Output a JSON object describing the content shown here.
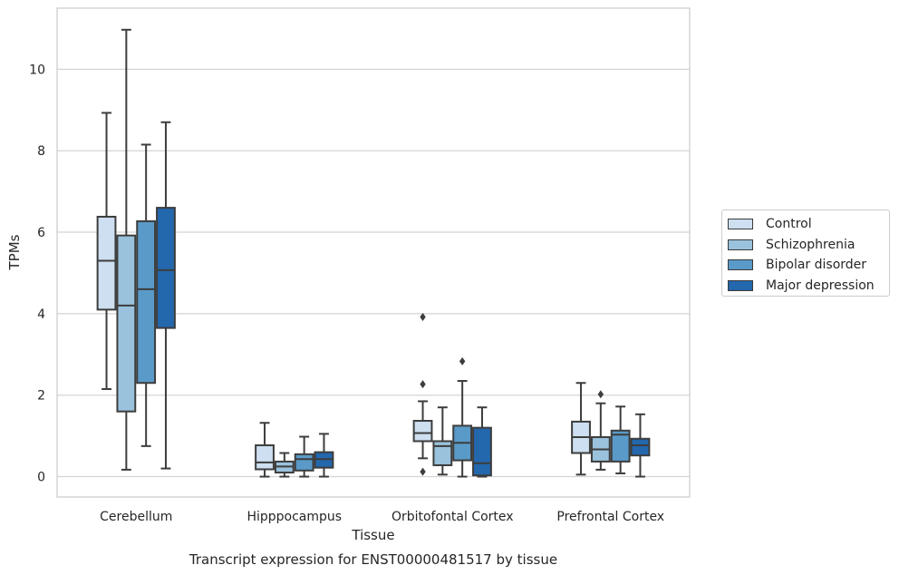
{
  "chart_data": {
    "type": "box",
    "title": "Transcript expression for ENST00000481517 by tissue",
    "xlabel": "Tissue",
    "ylabel": "TPMs",
    "ylim": [
      -0.5,
      11.5
    ],
    "yticks": [
      0,
      2,
      4,
      6,
      8,
      10
    ],
    "grid": "horizontal",
    "legend_position": "right",
    "categories": [
      "Cerebellum",
      "Hipppocampus",
      "Orbitofontal Cortex",
      "Prefrontal Cortex"
    ],
    "series": [
      {
        "name": "Control",
        "color": "#cddff0",
        "boxes": [
          {
            "whislo": 2.15,
            "q1": 4.1,
            "med": 5.3,
            "q3": 6.38,
            "whishi": 8.93,
            "fliers": []
          },
          {
            "whislo": 0.0,
            "q1": 0.18,
            "med": 0.35,
            "q3": 0.77,
            "whishi": 1.32,
            "fliers": []
          },
          {
            "whislo": 0.45,
            "q1": 0.87,
            "med": 1.07,
            "q3": 1.37,
            "whishi": 1.85,
            "fliers": [
              2.27,
              3.92,
              0.12
            ]
          },
          {
            "whislo": 0.05,
            "q1": 0.58,
            "med": 0.97,
            "q3": 1.35,
            "whishi": 2.3,
            "fliers": []
          }
        ]
      },
      {
        "name": "Schizophrenia",
        "color": "#9ac2dc",
        "boxes": [
          {
            "whislo": 0.17,
            "q1": 1.6,
            "med": 4.2,
            "q3": 5.92,
            "whishi": 10.97,
            "fliers": []
          },
          {
            "whislo": 0.0,
            "q1": 0.1,
            "med": 0.25,
            "q3": 0.37,
            "whishi": 0.58,
            "fliers": []
          },
          {
            "whislo": 0.05,
            "q1": 0.28,
            "med": 0.75,
            "q3": 0.87,
            "whishi": 1.7,
            "fliers": []
          },
          {
            "whislo": 0.17,
            "q1": 0.37,
            "med": 0.67,
            "q3": 0.97,
            "whishi": 1.8,
            "fliers": [
              2.02
            ]
          }
        ]
      },
      {
        "name": "Bipolar disorder",
        "color": "#5a9ac8",
        "boxes": [
          {
            "whislo": 0.75,
            "q1": 2.3,
            "med": 4.6,
            "q3": 6.27,
            "whishi": 8.15,
            "fliers": []
          },
          {
            "whislo": 0.0,
            "q1": 0.15,
            "med": 0.43,
            "q3": 0.55,
            "whishi": 0.98,
            "fliers": []
          },
          {
            "whislo": 0.0,
            "q1": 0.4,
            "med": 0.83,
            "q3": 1.25,
            "whishi": 2.35,
            "fliers": [
              2.83
            ]
          },
          {
            "whislo": 0.08,
            "q1": 0.37,
            "med": 1.03,
            "q3": 1.13,
            "whishi": 1.72,
            "fliers": []
          }
        ]
      },
      {
        "name": "Major depression",
        "color": "#2367ad",
        "boxes": [
          {
            "whislo": 0.2,
            "q1": 3.65,
            "med": 5.07,
            "q3": 6.6,
            "whishi": 8.7,
            "fliers": []
          },
          {
            "whislo": 0.0,
            "q1": 0.22,
            "med": 0.43,
            "q3": 0.6,
            "whishi": 1.05,
            "fliers": []
          },
          {
            "whislo": 0.0,
            "q1": 0.03,
            "med": 0.33,
            "q3": 1.2,
            "whishi": 1.7,
            "fliers": []
          },
          {
            "whislo": 0.0,
            "q1": 0.52,
            "med": 0.77,
            "q3": 0.93,
            "whishi": 1.53,
            "fliers": []
          }
        ]
      }
    ]
  }
}
